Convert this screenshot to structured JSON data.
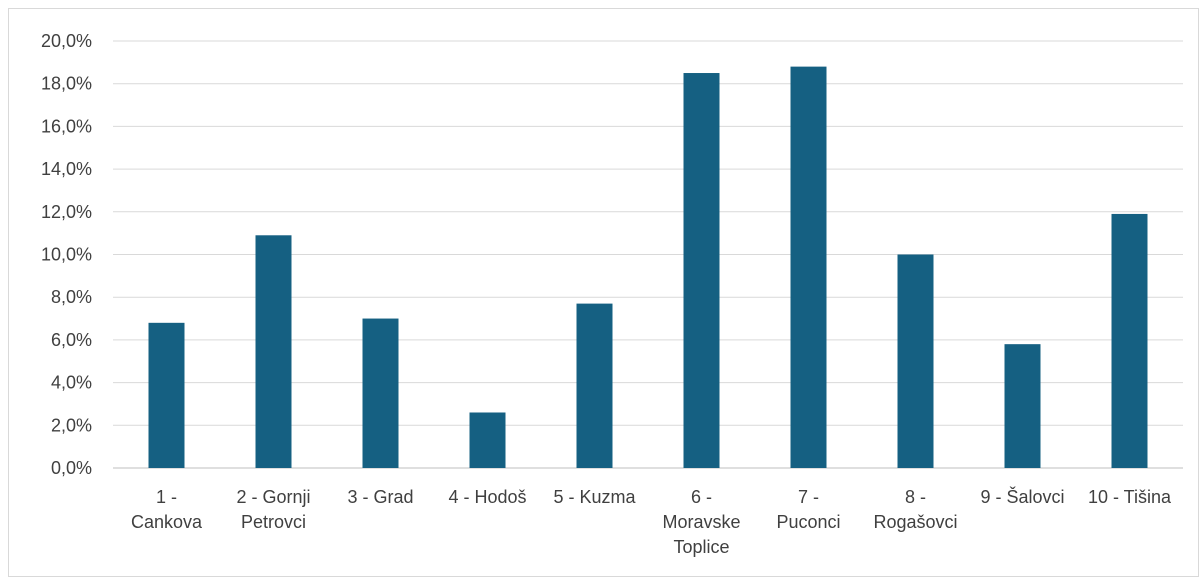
{
  "chart_data": {
    "type": "bar",
    "title": "",
    "xlabel": "",
    "ylabel": "",
    "ylim": [
      0,
      20
    ],
    "yticks": [
      "0,0%",
      "2,0%",
      "4,0%",
      "6,0%",
      "8,0%",
      "10,0%",
      "12,0%",
      "14,0%",
      "16,0%",
      "18,0%",
      "20,0%"
    ],
    "categories": [
      [
        "1 -",
        "Cankova"
      ],
      [
        "2 - Gornji",
        "Petrovci"
      ],
      [
        "3 - Grad"
      ],
      [
        "4 - Hodoš"
      ],
      [
        "5 - Kuzma"
      ],
      [
        "6 -",
        "Moravske",
        "Toplice"
      ],
      [
        "7 -",
        "Puconci"
      ],
      [
        "8 -",
        "Rogašovci"
      ],
      [
        "9 - Šalovci"
      ],
      [
        "10 - Tišina"
      ]
    ],
    "values": [
      6.8,
      10.9,
      7.0,
      2.6,
      7.7,
      18.5,
      18.8,
      10.0,
      5.8,
      11.9
    ],
    "grid": true,
    "legend": "none",
    "bar_color": "#156082"
  }
}
